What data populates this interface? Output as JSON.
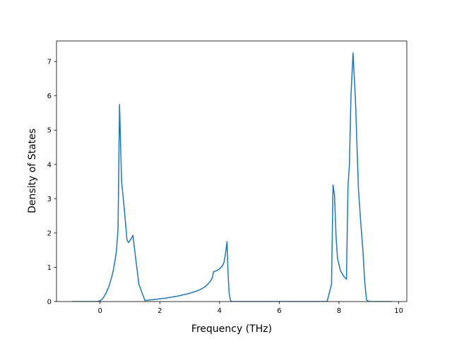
{
  "chart_data": {
    "type": "line",
    "title": "",
    "xlabel": "Frequency (THz)",
    "ylabel": "Density of States",
    "xlim": [
      -1.46,
      10.27
    ],
    "ylim": [
      0,
      7.6
    ],
    "xticks": [
      0,
      2,
      4,
      6,
      8,
      10
    ],
    "yticks": [
      0,
      1,
      2,
      3,
      4,
      5,
      6,
      7
    ],
    "grid": false,
    "line_color": "#1f77b4",
    "series": [
      {
        "x": [
          -0.93,
          -0.5,
          -0.1,
          0.0,
          0.1,
          0.2,
          0.3,
          0.4,
          0.45,
          0.5,
          0.55,
          0.6,
          0.65,
          0.72,
          0.8,
          0.85,
          0.9,
          0.95,
          1.0,
          1.05,
          1.1,
          1.2,
          1.3,
          1.5,
          1.8,
          2.2,
          2.6,
          3.0,
          3.3,
          3.5,
          3.6,
          3.7,
          3.76,
          3.8,
          3.9,
          4.0,
          4.1,
          4.15,
          4.2,
          4.25,
          4.28,
          4.32,
          4.36,
          4.4,
          4.5,
          5.0,
          6.0,
          7.0,
          7.6,
          7.75,
          7.8,
          7.85,
          7.9,
          7.95,
          8.05,
          8.15,
          8.25,
          8.3,
          8.35,
          8.4,
          8.47,
          8.55,
          8.65,
          8.72,
          8.8,
          8.86,
          8.92,
          9.0,
          9.5,
          9.77
        ],
        "y": [
          0.0,
          0.0,
          0.0,
          0.02,
          0.1,
          0.25,
          0.45,
          0.75,
          0.95,
          1.2,
          1.5,
          2.1,
          5.75,
          3.5,
          2.8,
          2.3,
          1.8,
          1.72,
          1.78,
          1.85,
          1.93,
          1.2,
          0.5,
          0.03,
          0.06,
          0.1,
          0.16,
          0.24,
          0.33,
          0.42,
          0.5,
          0.6,
          0.7,
          0.87,
          0.9,
          0.95,
          1.05,
          1.15,
          1.4,
          1.75,
          0.9,
          0.25,
          0.05,
          0.0,
          0.0,
          0.0,
          0.0,
          0.0,
          0.0,
          0.5,
          3.4,
          3.1,
          1.9,
          1.25,
          0.9,
          0.75,
          0.65,
          3.35,
          4.0,
          6.0,
          7.25,
          5.9,
          3.3,
          2.4,
          1.5,
          0.6,
          0.05,
          0.0,
          0.0,
          0.0
        ]
      }
    ]
  }
}
